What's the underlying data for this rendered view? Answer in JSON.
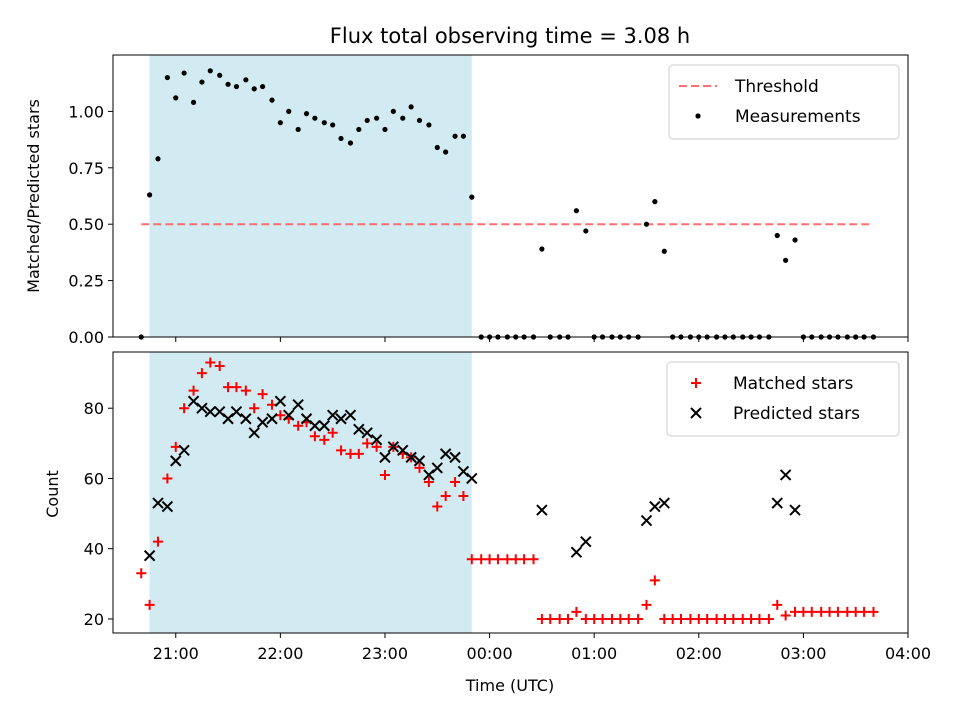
{
  "title": "Flux total observing time = 3.08 h",
  "xlabel": "Time (UTC)",
  "x_ticks": [
    "21:00",
    "22:00",
    "23:00",
    "00:00",
    "01:00",
    "02:00",
    "03:00",
    "04:00"
  ],
  "colors": {
    "shaded_region": "#add8e6",
    "threshold": "#ff7070",
    "measurements": "#000000",
    "matched": "#ff0000",
    "predicted": "#000000"
  },
  "chart_data": [
    {
      "type": "scatter",
      "panel": "top",
      "xlabel": "",
      "ylabel": "Matched/Predicted stars",
      "x_unit": "hours since 00:00 UTC",
      "xlim": [
        -3.6,
        4.0
      ],
      "ylim": [
        0.0,
        1.25
      ],
      "y_ticks": [
        "0.00",
        "0.25",
        "0.50",
        "0.75",
        "1.00"
      ],
      "legend_position": "top-right",
      "shaded_span": [
        -3.25,
        -0.17
      ],
      "threshold": {
        "name": "Threshold",
        "y": 0.5,
        "x_range": [
          -3.33,
          3.67
        ]
      },
      "series": [
        {
          "name": "Measurements",
          "points": [
            [
              -3.33,
              0.0
            ],
            [
              -3.25,
              0.63
            ],
            [
              -3.17,
              0.79
            ],
            [
              -3.08,
              1.15
            ],
            [
              -3.0,
              1.06
            ],
            [
              -2.92,
              1.17
            ],
            [
              -2.83,
              1.04
            ],
            [
              -2.75,
              1.13
            ],
            [
              -2.67,
              1.18
            ],
            [
              -2.58,
              1.16
            ],
            [
              -2.5,
              1.12
            ],
            [
              -2.42,
              1.11
            ],
            [
              -2.33,
              1.14
            ],
            [
              -2.25,
              1.1
            ],
            [
              -2.17,
              1.11
            ],
            [
              -2.08,
              1.05
            ],
            [
              -2.0,
              0.95
            ],
            [
              -1.92,
              1.0
            ],
            [
              -1.83,
              0.92
            ],
            [
              -1.75,
              0.99
            ],
            [
              -1.67,
              0.97
            ],
            [
              -1.58,
              0.95
            ],
            [
              -1.5,
              0.94
            ],
            [
              -1.42,
              0.88
            ],
            [
              -1.33,
              0.86
            ],
            [
              -1.25,
              0.92
            ],
            [
              -1.17,
              0.96
            ],
            [
              -1.08,
              0.97
            ],
            [
              -1.0,
              0.92
            ],
            [
              -0.92,
              1.0
            ],
            [
              -0.83,
              0.97
            ],
            [
              -0.75,
              1.02
            ],
            [
              -0.67,
              0.96
            ],
            [
              -0.58,
              0.94
            ],
            [
              -0.5,
              0.84
            ],
            [
              -0.42,
              0.82
            ],
            [
              -0.33,
              0.89
            ],
            [
              -0.25,
              0.89
            ],
            [
              -0.17,
              0.62
            ],
            [
              -0.08,
              0.0
            ],
            [
              0.0,
              0.0
            ],
            [
              0.08,
              0.0
            ],
            [
              0.17,
              0.0
            ],
            [
              0.25,
              0.0
            ],
            [
              0.33,
              0.0
            ],
            [
              0.42,
              0.0
            ],
            [
              0.5,
              0.39
            ],
            [
              0.58,
              0.0
            ],
            [
              0.67,
              0.0
            ],
            [
              0.75,
              0.0
            ],
            [
              0.83,
              0.56
            ],
            [
              0.92,
              0.47
            ],
            [
              1.0,
              0.0
            ],
            [
              1.08,
              0.0
            ],
            [
              1.17,
              0.0
            ],
            [
              1.25,
              0.0
            ],
            [
              1.33,
              0.0
            ],
            [
              1.42,
              0.0
            ],
            [
              1.5,
              0.5
            ],
            [
              1.58,
              0.6
            ],
            [
              1.67,
              0.38
            ],
            [
              1.75,
              0.0
            ],
            [
              1.83,
              0.0
            ],
            [
              1.92,
              0.0
            ],
            [
              2.0,
              0.0
            ],
            [
              2.08,
              0.0
            ],
            [
              2.17,
              0.0
            ],
            [
              2.25,
              0.0
            ],
            [
              2.33,
              0.0
            ],
            [
              2.42,
              0.0
            ],
            [
              2.5,
              0.0
            ],
            [
              2.58,
              0.0
            ],
            [
              2.67,
              0.0
            ],
            [
              2.75,
              0.45
            ],
            [
              2.83,
              0.34
            ],
            [
              2.92,
              0.43
            ],
            [
              3.0,
              0.0
            ],
            [
              3.08,
              0.0
            ],
            [
              3.17,
              0.0
            ],
            [
              3.25,
              0.0
            ],
            [
              3.33,
              0.0
            ],
            [
              3.42,
              0.0
            ],
            [
              3.5,
              0.0
            ],
            [
              3.58,
              0.0
            ],
            [
              3.67,
              0.0
            ]
          ]
        }
      ]
    },
    {
      "type": "scatter",
      "panel": "bottom",
      "xlabel": "Time (UTC)",
      "ylabel": "Count",
      "x_unit": "hours since 00:00 UTC",
      "xlim": [
        -3.6,
        4.0
      ],
      "ylim": [
        16.0,
        96.0
      ],
      "y_ticks": [
        "20",
        "40",
        "60",
        "80"
      ],
      "legend_position": "top-right",
      "shaded_span": [
        -3.25,
        -0.17
      ],
      "series": [
        {
          "name": "Matched stars",
          "marker": "plus",
          "points": [
            [
              -3.33,
              33
            ],
            [
              -3.25,
              24
            ],
            [
              -3.17,
              42
            ],
            [
              -3.08,
              60
            ],
            [
              -3.0,
              69
            ],
            [
              -2.92,
              80
            ],
            [
              -2.83,
              85
            ],
            [
              -2.75,
              90
            ],
            [
              -2.67,
              93
            ],
            [
              -2.58,
              92
            ],
            [
              -2.5,
              86
            ],
            [
              -2.42,
              86
            ],
            [
              -2.33,
              85
            ],
            [
              -2.25,
              80
            ],
            [
              -2.17,
              84
            ],
            [
              -2.08,
              81
            ],
            [
              -2.0,
              78
            ],
            [
              -1.92,
              77
            ],
            [
              -1.83,
              75
            ],
            [
              -1.75,
              76
            ],
            [
              -1.67,
              72
            ],
            [
              -1.58,
              71
            ],
            [
              -1.5,
              73
            ],
            [
              -1.42,
              68
            ],
            [
              -1.33,
              67
            ],
            [
              -1.25,
              67
            ],
            [
              -1.17,
              70
            ],
            [
              -1.08,
              69
            ],
            [
              -1.0,
              61
            ],
            [
              -0.92,
              69
            ],
            [
              -0.83,
              67
            ],
            [
              -0.75,
              66
            ],
            [
              -0.67,
              63
            ],
            [
              -0.58,
              59
            ],
            [
              -0.5,
              52
            ],
            [
              -0.42,
              55
            ],
            [
              -0.33,
              59
            ],
            [
              -0.25,
              55
            ],
            [
              -0.17,
              37
            ],
            [
              -0.08,
              37
            ],
            [
              0.0,
              37
            ],
            [
              0.08,
              37
            ],
            [
              0.17,
              37
            ],
            [
              0.25,
              37
            ],
            [
              0.33,
              37
            ],
            [
              0.42,
              37
            ],
            [
              0.5,
              20
            ],
            [
              0.58,
              20
            ],
            [
              0.67,
              20
            ],
            [
              0.75,
              20
            ],
            [
              0.83,
              22
            ],
            [
              0.92,
              20
            ],
            [
              1.0,
              20
            ],
            [
              1.08,
              20
            ],
            [
              1.17,
              20
            ],
            [
              1.25,
              20
            ],
            [
              1.33,
              20
            ],
            [
              1.42,
              20
            ],
            [
              1.5,
              24
            ],
            [
              1.58,
              31
            ],
            [
              1.67,
              20
            ],
            [
              1.75,
              20
            ],
            [
              1.83,
              20
            ],
            [
              1.92,
              20
            ],
            [
              2.0,
              20
            ],
            [
              2.08,
              20
            ],
            [
              2.17,
              20
            ],
            [
              2.25,
              20
            ],
            [
              2.33,
              20
            ],
            [
              2.42,
              20
            ],
            [
              2.5,
              20
            ],
            [
              2.58,
              20
            ],
            [
              2.67,
              20
            ],
            [
              2.75,
              24
            ],
            [
              2.83,
              21
            ],
            [
              2.92,
              22
            ],
            [
              3.0,
              22
            ],
            [
              3.08,
              22
            ],
            [
              3.17,
              22
            ],
            [
              3.25,
              22
            ],
            [
              3.33,
              22
            ],
            [
              3.42,
              22
            ],
            [
              3.5,
              22
            ],
            [
              3.58,
              22
            ],
            [
              3.67,
              22
            ]
          ]
        },
        {
          "name": "Predicted stars",
          "marker": "x",
          "points": [
            [
              -3.25,
              38
            ],
            [
              -3.17,
              53
            ],
            [
              -3.08,
              52
            ],
            [
              -3.0,
              65
            ],
            [
              -2.92,
              68
            ],
            [
              -2.83,
              82
            ],
            [
              -2.75,
              80
            ],
            [
              -2.67,
              79
            ],
            [
              -2.58,
              79
            ],
            [
              -2.5,
              77
            ],
            [
              -2.42,
              79
            ],
            [
              -2.33,
              77
            ],
            [
              -2.25,
              73
            ],
            [
              -2.17,
              76
            ],
            [
              -2.08,
              77
            ],
            [
              -2.0,
              82
            ],
            [
              -1.92,
              78
            ],
            [
              -1.83,
              81
            ],
            [
              -1.75,
              77
            ],
            [
              -1.67,
              75
            ],
            [
              -1.58,
              75
            ],
            [
              -1.5,
              78
            ],
            [
              -1.42,
              77
            ],
            [
              -1.33,
              78
            ],
            [
              -1.25,
              74
            ],
            [
              -1.17,
              73
            ],
            [
              -1.08,
              71
            ],
            [
              -1.0,
              66
            ],
            [
              -0.92,
              69
            ],
            [
              -0.83,
              68
            ],
            [
              -0.75,
              66
            ],
            [
              -0.67,
              65
            ],
            [
              -0.58,
              61
            ],
            [
              -0.5,
              63
            ],
            [
              -0.42,
              67
            ],
            [
              -0.33,
              66
            ],
            [
              -0.25,
              62
            ],
            [
              -0.17,
              60
            ],
            [
              0.5,
              51
            ],
            [
              0.83,
              39
            ],
            [
              0.92,
              42
            ],
            [
              1.5,
              48
            ],
            [
              1.58,
              52
            ],
            [
              1.67,
              53
            ],
            [
              2.75,
              53
            ],
            [
              2.83,
              61
            ],
            [
              2.92,
              51
            ]
          ]
        }
      ]
    }
  ]
}
